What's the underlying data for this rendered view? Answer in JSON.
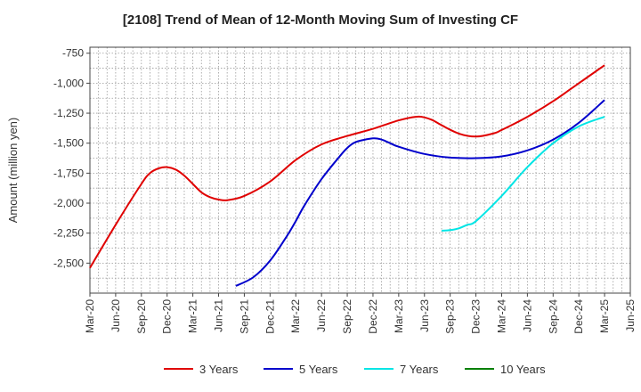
{
  "chart_data": {
    "type": "line",
    "title": "[2108]  Trend of Mean of 12-Month Moving Sum of Investing CF",
    "ylabel": "Amount (million yen)",
    "xlabel": "",
    "ylim": [
      -2750,
      -700
    ],
    "yticks": [
      -750,
      -1000,
      -1250,
      -1500,
      -1750,
      -2000,
      -2250,
      -2500
    ],
    "ytick_labels": [
      "-750",
      "-1,000",
      "-1,250",
      "-1,500",
      "-1,750",
      "-2,000",
      "-2,250",
      "-2,500"
    ],
    "xlim": [
      0,
      63
    ],
    "xticks": [
      0,
      3,
      6,
      9,
      12,
      15,
      18,
      21,
      24,
      27,
      30,
      33,
      36,
      39,
      42,
      45,
      48,
      51,
      54,
      57,
      60,
      63
    ],
    "xtick_labels": [
      "Mar-20",
      "Jun-20",
      "Sep-20",
      "Dec-20",
      "Mar-21",
      "Jun-21",
      "Sep-21",
      "Dec-21",
      "Mar-22",
      "Jun-22",
      "Sep-22",
      "Dec-22",
      "Mar-23",
      "Jun-23",
      "Sep-23",
      "Dec-23",
      "Mar-24",
      "Jun-24",
      "Sep-24",
      "Dec-24",
      "Mar-25",
      "Jun-25"
    ],
    "grid": true,
    "legend_position": "bottom",
    "series": [
      {
        "name": "3 Years",
        "color": "#e00000",
        "x": [
          0,
          3,
          6,
          7,
          8,
          9,
          10,
          11,
          12,
          13,
          14,
          15,
          16,
          18,
          21,
          24,
          27,
          30,
          33,
          36,
          38,
          39,
          40,
          41,
          43,
          45,
          47,
          48,
          51,
          54,
          57,
          60
        ],
        "values": [
          -2540,
          -2180,
          -1840,
          -1750,
          -1710,
          -1700,
          -1720,
          -1770,
          -1840,
          -1910,
          -1950,
          -1970,
          -1975,
          -1940,
          -1820,
          -1640,
          -1510,
          -1440,
          -1380,
          -1310,
          -1280,
          -1285,
          -1310,
          -1350,
          -1420,
          -1445,
          -1420,
          -1390,
          -1280,
          -1150,
          -1000,
          -850
        ]
      },
      {
        "name": "5 Years",
        "color": "#0000cc",
        "x": [
          17,
          19,
          21,
          23,
          24,
          25,
          27,
          29,
          30,
          31,
          33,
          34,
          35,
          36,
          39,
          42,
          45,
          48,
          51,
          54,
          57,
          60
        ],
        "values": [
          -2690,
          -2620,
          -2480,
          -2270,
          -2150,
          -2020,
          -1800,
          -1620,
          -1540,
          -1490,
          -1460,
          -1470,
          -1500,
          -1530,
          -1590,
          -1620,
          -1625,
          -1610,
          -1560,
          -1470,
          -1330,
          -1140
        ]
      },
      {
        "name": "7 Years",
        "color": "#00e5e5",
        "x": [
          41,
          42,
          43,
          44,
          45,
          48,
          51,
          54,
          57,
          60
        ],
        "values": [
          -2230,
          -2225,
          -2210,
          -2180,
          -2150,
          -1940,
          -1700,
          -1500,
          -1360,
          -1280
        ]
      },
      {
        "name": "10 Years",
        "color": "#008000",
        "x": [],
        "values": []
      }
    ]
  }
}
